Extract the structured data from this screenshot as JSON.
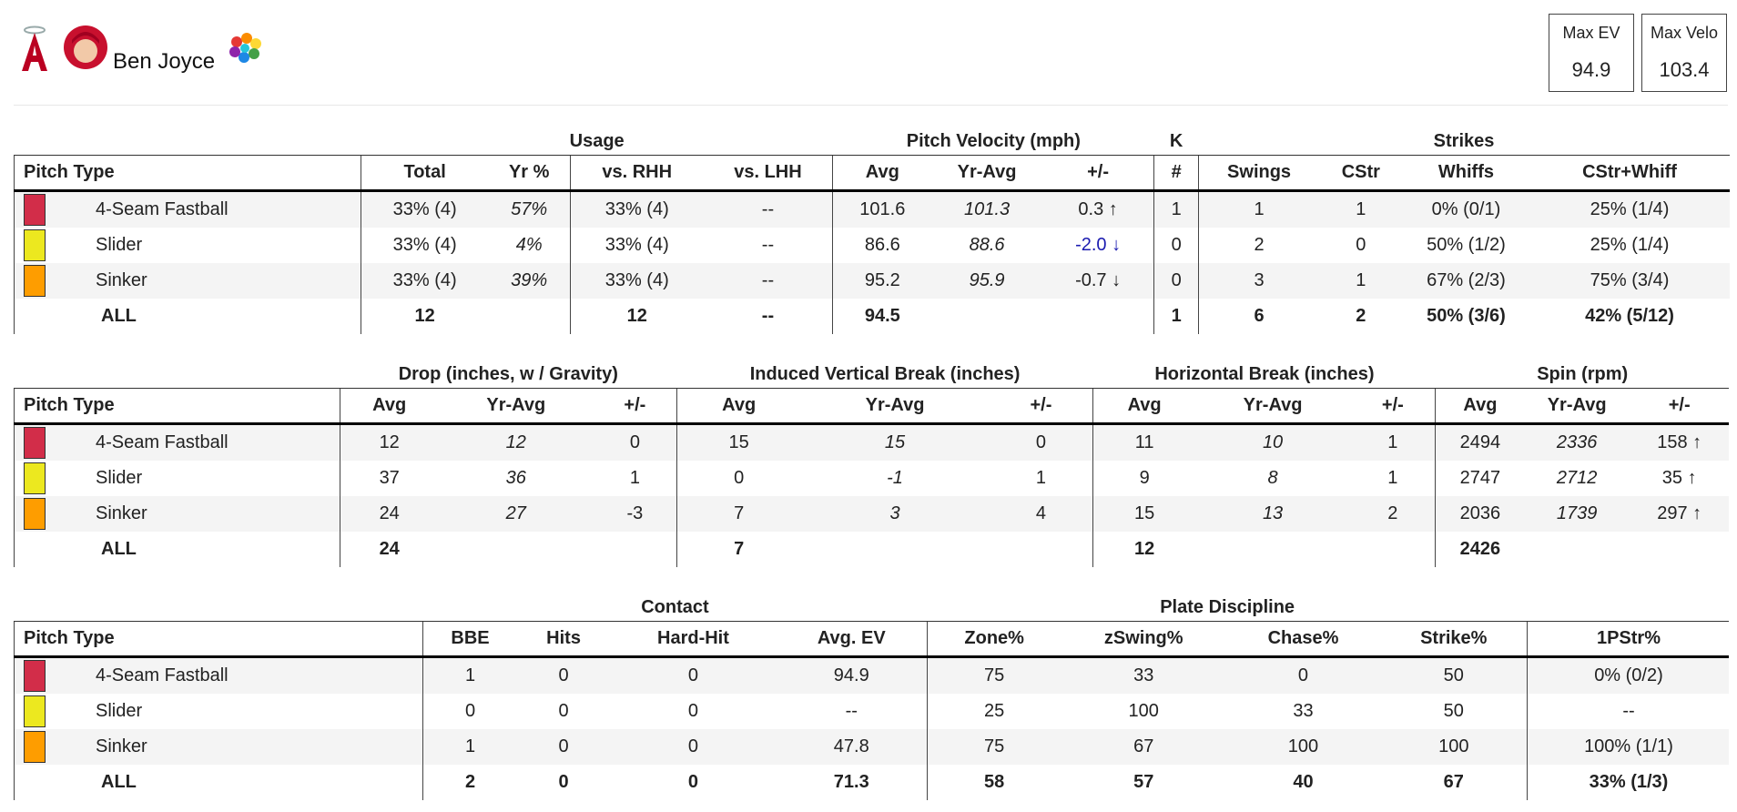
{
  "header": {
    "player_name": "Ben Joyce",
    "stats": [
      {
        "label": "Max EV",
        "value": "94.9"
      },
      {
        "label": "Max Velo",
        "value": "103.4"
      }
    ]
  },
  "tables": [
    {
      "groups": [
        {
          "columns": [
            "Pitch Type"
          ]
        },
        {
          "label": "Usage",
          "columns": [
            "Total",
            "Yr %",
            "vs. RHH",
            "vs. LHH"
          ]
        },
        {
          "label": "Pitch Velocity (mph)",
          "columns": [
            "Avg",
            "Yr-Avg",
            "+/-"
          ]
        },
        {
          "label": "K",
          "columns": [
            "#"
          ]
        },
        {
          "label": "Strikes",
          "columns": [
            "Swings",
            "CStr",
            "Whiffs",
            "CStr+Whiff"
          ]
        }
      ],
      "rows": [
        {
          "swatch": "#d22d49",
          "cells": [
            "4-Seam Fastball",
            "33% (4)",
            "57%",
            "33% (4)",
            "--",
            "101.6",
            "101.3",
            "0.3 ↑",
            "1",
            "1",
            "1",
            "0% (0/1)",
            "25% (1/4)"
          ]
        },
        {
          "swatch": "#ece81f",
          "cells": [
            "Slider",
            "33% (4)",
            "4%",
            "33% (4)",
            "--",
            "86.6",
            "88.6",
            "-2.0 ↓",
            "0",
            "2",
            "0",
            "50% (1/2)",
            "25% (1/4)"
          ],
          "colors": {
            "7": "#1b1bb0"
          }
        },
        {
          "swatch": "#fe9d00",
          "cells": [
            "Sinker",
            "33% (4)",
            "39%",
            "33% (4)",
            "--",
            "95.2",
            "95.9",
            "-0.7 ↓",
            "0",
            "3",
            "1",
            "67% (2/3)",
            "75% (3/4)"
          ]
        },
        {
          "cells": [
            "ALL",
            "12",
            null,
            "12",
            "--",
            "94.5",
            null,
            null,
            "1",
            "6",
            "2",
            "50% (3/6)",
            "42% (5/12)"
          ]
        }
      ]
    },
    {
      "groups": [
        {
          "columns": [
            "Pitch Type"
          ]
        },
        {
          "label": "Drop (inches, w / Gravity)",
          "columns": [
            "Avg",
            "Yr-Avg",
            "+/-"
          ]
        },
        {
          "label": "Induced Vertical Break (inches)",
          "columns": [
            "Avg",
            "Yr-Avg",
            "+/-"
          ]
        },
        {
          "label": "Horizontal Break (inches)",
          "columns": [
            "Avg",
            "Yr-Avg",
            "+/-"
          ]
        },
        {
          "label": "Spin (rpm)",
          "columns": [
            "Avg",
            "Yr-Avg",
            "+/-"
          ]
        }
      ],
      "rows": [
        {
          "swatch": "#d22d49",
          "cells": [
            "4-Seam Fastball",
            "12",
            "12",
            "0",
            "15",
            "15",
            "0",
            "11",
            "10",
            "1",
            "2494",
            "2336",
            "158 ↑"
          ]
        },
        {
          "swatch": "#ece81f",
          "cells": [
            "Slider",
            "37",
            "36",
            "1",
            "0",
            "-1",
            "1",
            "9",
            "8",
            "1",
            "2747",
            "2712",
            "35 ↑"
          ]
        },
        {
          "swatch": "#fe9d00",
          "cells": [
            "Sinker",
            "24",
            "27",
            "-3",
            "7",
            "3",
            "4",
            "15",
            "13",
            "2",
            "2036",
            "1739",
            "297 ↑"
          ]
        },
        {
          "cells": [
            "ALL",
            "24",
            null,
            null,
            "7",
            null,
            null,
            "12",
            null,
            null,
            "2426",
            null,
            null
          ]
        }
      ]
    },
    {
      "groups": [
        {
          "columns": [
            "Pitch Type"
          ]
        },
        {
          "label": "Contact",
          "columns": [
            "BBE",
            "Hits",
            "Hard-Hit",
            "Avg. EV"
          ]
        },
        {
          "label": "Plate Discipline",
          "columns": [
            "Zone%",
            "zSwing%",
            "Chase%",
            "Strike%"
          ]
        },
        {
          "columns": [
            "1PStr%"
          ]
        }
      ],
      "rows": [
        {
          "swatch": "#d22d49",
          "cells": [
            "4-Seam Fastball",
            "1",
            "0",
            "0",
            "94.9",
            "75",
            "33",
            "0",
            "50",
            "0% (0/2)"
          ]
        },
        {
          "swatch": "#ece81f",
          "cells": [
            "Slider",
            "0",
            "0",
            "0",
            "--",
            "25",
            "100",
            "33",
            "50",
            "--"
          ]
        },
        {
          "swatch": "#fe9d00",
          "cells": [
            "Sinker",
            "1",
            "0",
            "0",
            "47.8",
            "75",
            "67",
            "100",
            "100",
            "100% (1/1)"
          ]
        },
        {
          "cells": [
            "ALL",
            "2",
            "0",
            "0",
            "71.3",
            "58",
            "57",
            "40",
            "67",
            "33% (1/3)"
          ]
        }
      ]
    }
  ]
}
